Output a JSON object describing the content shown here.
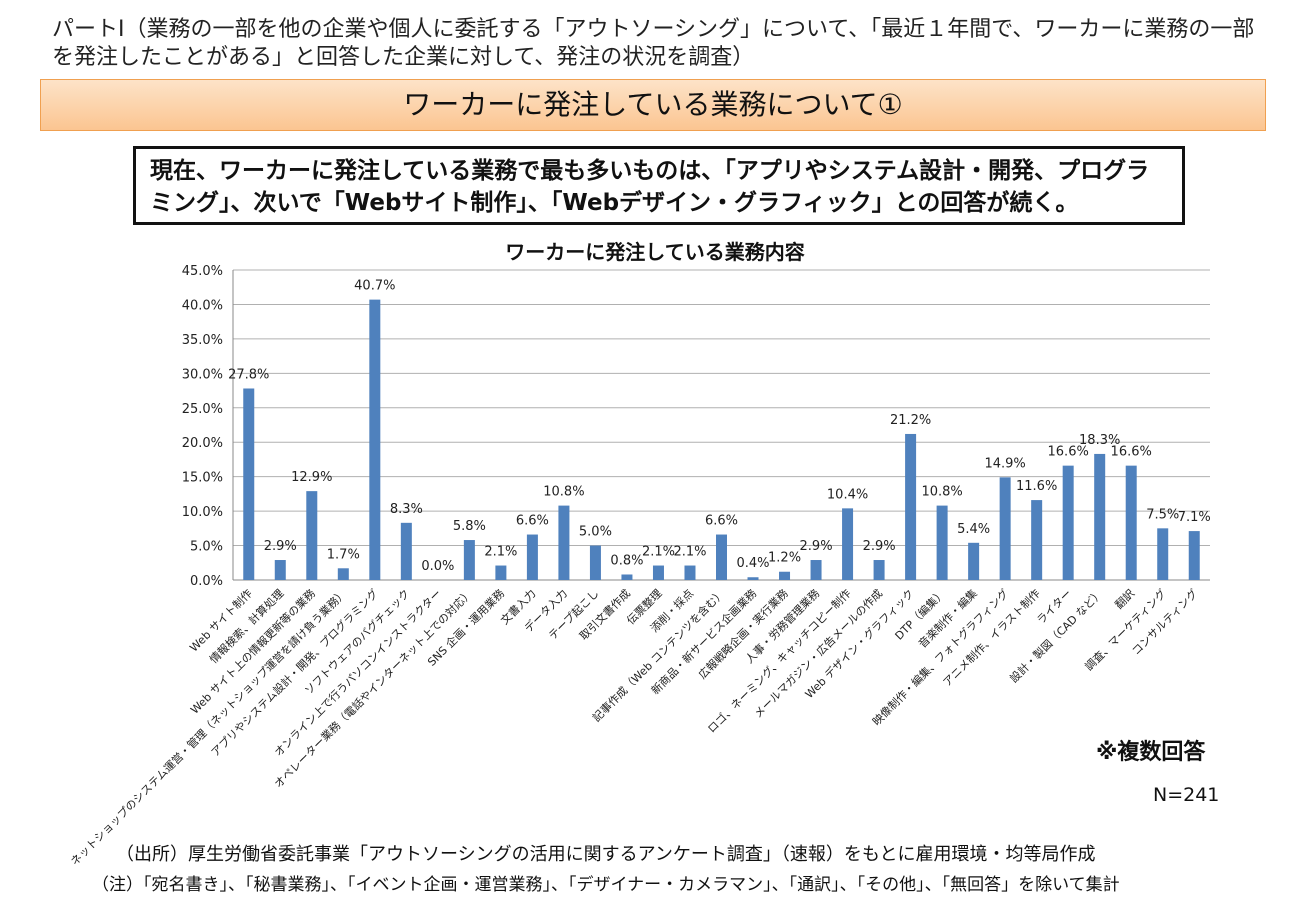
{
  "header": {
    "intro": "パートⅠ（業務の一部を他の企業や個人に委託する「アウトソーシング」について、「最近１年間で、ワーカーに業務の一部を発注したことがある」と回答した企業に対して、発注の状況を調査）",
    "banner_title": "ワーカーに発注している業務について①"
  },
  "summary": {
    "text": "現在、ワーカーに発注している業務で最も多いものは、「アプリやシステム設計・開発、プログラミング」、次いで「Webサイト制作」、「Webデザイン・グラフィック」との回答が続く。"
  },
  "notes": {
    "multiple": "※複数回答",
    "n": "N=241",
    "source": "（出所）厚生労働省委託事業「アウトソーシングの活用に関するアンケート調査」（速報）をもとに雇用環境・均等局作成",
    "footnote": "（注）「宛名書き」、「秘書業務」、「イベント企画・運営業務」、「デザイナー・カメラマン」、「通訳」、「その他」、「無回答」を除いて集計"
  },
  "chart_data": {
    "type": "bar",
    "title": "ワーカーに発注している業務内容",
    "xlabel": "",
    "ylabel": "",
    "ylim": [
      0,
      45
    ],
    "yticks": [
      "0.0%",
      "5.0%",
      "10.0%",
      "15.0%",
      "20.0%",
      "25.0%",
      "30.0%",
      "35.0%",
      "40.0%",
      "45.0%"
    ],
    "grid": true,
    "bar_color": "#4f81bd",
    "categories": [
      "Web サイト制作",
      "情報検索、計算処理",
      "Web サイト上の情報更新等の業務",
      "ネットショップのシステム運営・管理（ネットショップ運営を請け負う業務）",
      "アプリやシステム設計・開発、プログラミング",
      "ソフトウェアのバグチェック",
      "オンライン上で行うパソコンインストラクター",
      "オペレーター業務（電話やインターネット上での対応）",
      "SNS 企画・運用業務",
      "文書入力",
      "データ入力",
      "テープ起こし",
      "取引文書作成",
      "伝票整理",
      "添削・採点",
      "記事作成（Web コンテンツを含む）",
      "新商品・新サービス企画業務",
      "広報戦略企画・実行業務",
      "人事・労務管理業務",
      "ロゴ、ネーミング、キャッチコピー制作",
      "メールマガジン・広告メールの作成",
      "Web デザイン・グラフィック",
      "DTP（編集）",
      "音楽制作・編集",
      "映像制作・編集、フォトグラフィング",
      "アニメ制作、イラスト制作",
      "ライター",
      "設計・製図（CAD など）",
      "翻訳",
      "調査、マーケティング",
      "コンサルティング"
    ],
    "values": [
      27.8,
      2.9,
      12.9,
      1.7,
      40.7,
      8.3,
      0.0,
      5.8,
      2.1,
      6.6,
      10.8,
      5.0,
      0.8,
      2.1,
      2.1,
      6.6,
      0.4,
      1.2,
      2.9,
      10.4,
      2.9,
      21.2,
      10.8,
      5.4,
      14.9,
      11.6,
      16.6,
      18.3,
      16.6,
      7.5,
      7.1
    ],
    "value_labels": [
      "27.8%",
      "2.9%",
      "12.9%",
      "1.7%",
      "40.7%",
      "8.3%",
      "0.0%",
      "5.8%",
      "2.1%",
      "6.6%",
      "10.8%",
      "5.0%",
      "0.8%",
      "2.1%",
      "2.1%",
      "6.6%",
      "0.4%",
      "1.2%",
      "2.9%",
      "10.4%",
      "2.9%",
      "21.2%",
      "10.8%",
      "5.4%",
      "14.9%",
      "11.6%",
      "16.6%",
      "18.3%",
      "16.6%",
      "7.5%",
      "7.1%"
    ]
  }
}
